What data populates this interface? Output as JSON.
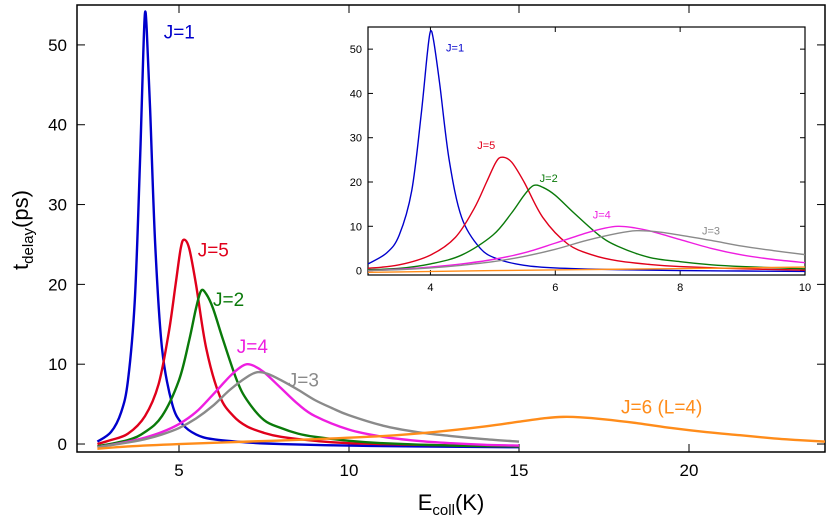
{
  "chart_data": [
    {
      "type": "line",
      "title": "",
      "xlabel": {
        "main": "E",
        "sub": "coll",
        "unit": "(K)"
      },
      "ylabel": {
        "main": "t",
        "sub": "delay",
        "unit": "(ps)"
      },
      "xlim": [
        2,
        24
      ],
      "ylim": [
        -1,
        55
      ],
      "xticks": [
        5,
        10,
        15,
        20
      ],
      "yticks": [
        0,
        10,
        20,
        30,
        40,
        50
      ],
      "grid": false,
      "series": [
        {
          "name": "J=1",
          "color": "#0000cc",
          "x": [
            2.6,
            3.0,
            3.3,
            3.5,
            3.7,
            3.85,
            3.95,
            4.0,
            4.05,
            4.15,
            4.3,
            4.5,
            4.8,
            5.1,
            5.5,
            6.0,
            7.0,
            8.0,
            10.0,
            12.0,
            15.0
          ],
          "y": [
            0.3,
            1.5,
            4.0,
            8.0,
            18.0,
            35.0,
            49.0,
            54.0,
            52.0,
            42.0,
            25.0,
            12.0,
            5.0,
            2.5,
            1.2,
            0.6,
            0.2,
            0.0,
            -0.2,
            -0.3,
            -0.4
          ]
        },
        {
          "name": "J=5",
          "color": "#e0001b",
          "x": [
            2.6,
            3.0,
            3.5,
            4.0,
            4.4,
            4.7,
            4.9,
            5.05,
            5.15,
            5.3,
            5.5,
            5.8,
            6.2,
            6.6,
            7.0,
            7.5,
            8.0,
            9.0,
            10.0,
            12.0,
            15.0
          ],
          "y": [
            0.0,
            0.5,
            1.3,
            3.5,
            7.5,
            14.0,
            20.0,
            24.5,
            25.6,
            24.5,
            20.0,
            12.0,
            6.0,
            3.5,
            2.2,
            1.4,
            0.9,
            0.4,
            0.1,
            -0.1,
            -0.3
          ]
        },
        {
          "name": "J=2",
          "color": "#0a7a0a",
          "x": [
            2.6,
            3.5,
            4.0,
            4.5,
            5.0,
            5.3,
            5.5,
            5.65,
            5.8,
            6.0,
            6.3,
            6.7,
            7.0,
            7.5,
            8.0,
            8.5,
            9.0,
            10.0,
            11.0,
            13.0,
            15.0
          ],
          "y": [
            -0.3,
            0.5,
            1.5,
            3.5,
            8.0,
            13.0,
            17.0,
            19.2,
            18.8,
            17.0,
            13.0,
            8.0,
            5.5,
            3.0,
            2.0,
            1.3,
            0.9,
            0.4,
            0.1,
            -0.2,
            -0.3
          ]
        },
        {
          "name": "J=4",
          "color": "#ee1ee0",
          "x": [
            2.6,
            3.5,
            4.0,
            4.5,
            5.0,
            5.5,
            6.0,
            6.5,
            6.8,
            7.0,
            7.2,
            7.5,
            8.0,
            8.5,
            9.0,
            10.0,
            11.0,
            12.0,
            13.0,
            14.0,
            15.0
          ],
          "y": [
            -0.4,
            0.3,
            0.8,
            1.5,
            2.5,
            4.0,
            6.2,
            8.5,
            9.6,
            10.0,
            9.8,
            9.0,
            7.0,
            5.0,
            3.5,
            1.8,
            0.9,
            0.4,
            0.1,
            -0.1,
            -0.2
          ]
        },
        {
          "name": "J=3",
          "color": "#8a8a8a",
          "x": [
            2.6,
            3.5,
            4.0,
            4.5,
            5.0,
            5.5,
            6.0,
            6.5,
            7.0,
            7.3,
            7.6,
            8.0,
            8.5,
            9.0,
            9.5,
            10.0,
            11.0,
            12.0,
            13.0,
            14.0,
            15.0
          ],
          "y": [
            -0.4,
            0.2,
            0.6,
            1.2,
            2.0,
            3.2,
            4.8,
            6.8,
            8.4,
            9.0,
            8.8,
            8.0,
            6.8,
            5.5,
            4.5,
            3.6,
            2.3,
            1.5,
            1.0,
            0.6,
            0.3
          ]
        },
        {
          "name": "J=6 (L=4)",
          "color": "#ff8c1a",
          "x": [
            2.6,
            3.5,
            5.0,
            7.0,
            9.0,
            11.0,
            12.5,
            14.0,
            15.0,
            15.8,
            16.3,
            16.8,
            17.5,
            18.5,
            19.5,
            20.5,
            21.5,
            22.5,
            23.2,
            24.0
          ],
          "y": [
            -0.6,
            -0.3,
            0.0,
            0.3,
            0.6,
            1.0,
            1.5,
            2.2,
            2.8,
            3.25,
            3.4,
            3.35,
            3.1,
            2.6,
            2.0,
            1.5,
            1.1,
            0.7,
            0.5,
            0.3
          ]
        }
      ],
      "annotations": [
        {
          "text": "J=1",
          "x": 4.55,
          "y": 50.8,
          "color": "#0000cc"
        },
        {
          "text": "J=5",
          "x": 5.55,
          "y": 23.5,
          "color": "#e0001b"
        },
        {
          "text": "J=2",
          "x": 6.0,
          "y": 17.3,
          "color": "#0a7a0a"
        },
        {
          "text": "J=4",
          "x": 6.7,
          "y": 11.4,
          "color": "#ee1ee0"
        },
        {
          "text": "J=3",
          "x": 8.2,
          "y": 7.2,
          "color": "#8a8a8a"
        },
        {
          "text": "J=6 (L=4)",
          "x": 18.0,
          "y": 3.8,
          "color": "#ff8c1a"
        }
      ]
    },
    {
      "type": "line",
      "title": "",
      "xlim": [
        3,
        10
      ],
      "ylim": [
        -1,
        55
      ],
      "xticks": [
        4,
        6,
        8,
        10
      ],
      "yticks": [
        0,
        10,
        20,
        30,
        40,
        50
      ],
      "grid": false,
      "series": [
        {
          "name": "J=1",
          "color": "#0000cc",
          "x": [
            3.0,
            3.3,
            3.5,
            3.7,
            3.85,
            3.95,
            4.0,
            4.05,
            4.15,
            4.3,
            4.5,
            4.8,
            5.1,
            5.5,
            6.0,
            7.0,
            8.0,
            9.0,
            10.0
          ],
          "y": [
            1.5,
            4.0,
            8.0,
            18.0,
            35.0,
            49.0,
            54.0,
            52.0,
            42.0,
            25.0,
            12.0,
            5.0,
            2.5,
            1.2,
            0.6,
            0.2,
            0.0,
            -0.1,
            -0.2
          ]
        },
        {
          "name": "J=5",
          "color": "#e0001b",
          "x": [
            3.0,
            3.5,
            4.0,
            4.4,
            4.7,
            4.9,
            5.05,
            5.15,
            5.3,
            5.5,
            5.8,
            6.2,
            6.6,
            7.0,
            7.5,
            8.0,
            9.0,
            10.0
          ],
          "y": [
            0.5,
            1.3,
            3.5,
            7.5,
            14.0,
            20.0,
            24.5,
            25.6,
            24.5,
            20.0,
            12.0,
            6.0,
            3.5,
            2.2,
            1.4,
            0.9,
            0.4,
            0.1
          ]
        },
        {
          "name": "J=2",
          "color": "#0a7a0a",
          "x": [
            3.0,
            3.5,
            4.0,
            4.5,
            5.0,
            5.3,
            5.5,
            5.65,
            5.8,
            6.0,
            6.3,
            6.7,
            7.0,
            7.5,
            8.0,
            8.5,
            9.0,
            10.0
          ],
          "y": [
            0.2,
            0.5,
            1.5,
            3.5,
            8.0,
            13.0,
            17.0,
            19.2,
            18.8,
            17.0,
            13.0,
            8.0,
            5.5,
            3.0,
            2.0,
            1.3,
            0.9,
            0.4
          ]
        },
        {
          "name": "J=4",
          "color": "#ee1ee0",
          "x": [
            3.0,
            3.5,
            4.0,
            4.5,
            5.0,
            5.5,
            6.0,
            6.5,
            6.8,
            7.0,
            7.2,
            7.5,
            8.0,
            8.5,
            9.0,
            9.5,
            10.0
          ],
          "y": [
            0.0,
            0.3,
            0.8,
            1.5,
            2.5,
            4.0,
            6.2,
            8.5,
            9.6,
            10.0,
            9.8,
            9.0,
            7.0,
            5.0,
            3.5,
            2.5,
            1.8
          ]
        },
        {
          "name": "J=3",
          "color": "#8a8a8a",
          "x": [
            3.0,
            3.5,
            4.0,
            4.5,
            5.0,
            5.5,
            6.0,
            6.5,
            7.0,
            7.3,
            7.6,
            8.0,
            8.5,
            9.0,
            9.5,
            10.0
          ],
          "y": [
            0.0,
            0.2,
            0.6,
            1.2,
            2.0,
            3.2,
            4.8,
            6.8,
            8.4,
            9.0,
            8.8,
            8.0,
            6.8,
            5.5,
            4.5,
            3.6
          ]
        },
        {
          "name": "J=6 (L=4)",
          "color": "#ff8c1a",
          "x": [
            3.0,
            3.5,
            5.0,
            7.0,
            9.0,
            10.0
          ],
          "y": [
            -0.4,
            -0.3,
            0.0,
            0.3,
            0.6,
            0.8
          ]
        }
      ],
      "annotations": [
        {
          "text": "J=1",
          "x": 4.25,
          "y": 49.5,
          "color": "#0000cc"
        },
        {
          "text": "J=5",
          "x": 4.75,
          "y": 27.5,
          "color": "#e0001b"
        },
        {
          "text": "J=2",
          "x": 5.75,
          "y": 20.0,
          "color": "#0a7a0a"
        },
        {
          "text": "J=4",
          "x": 6.6,
          "y": 11.8,
          "color": "#ee1ee0"
        },
        {
          "text": "J=3",
          "x": 8.35,
          "y": 8.2,
          "color": "#8a8a8a"
        }
      ]
    }
  ]
}
